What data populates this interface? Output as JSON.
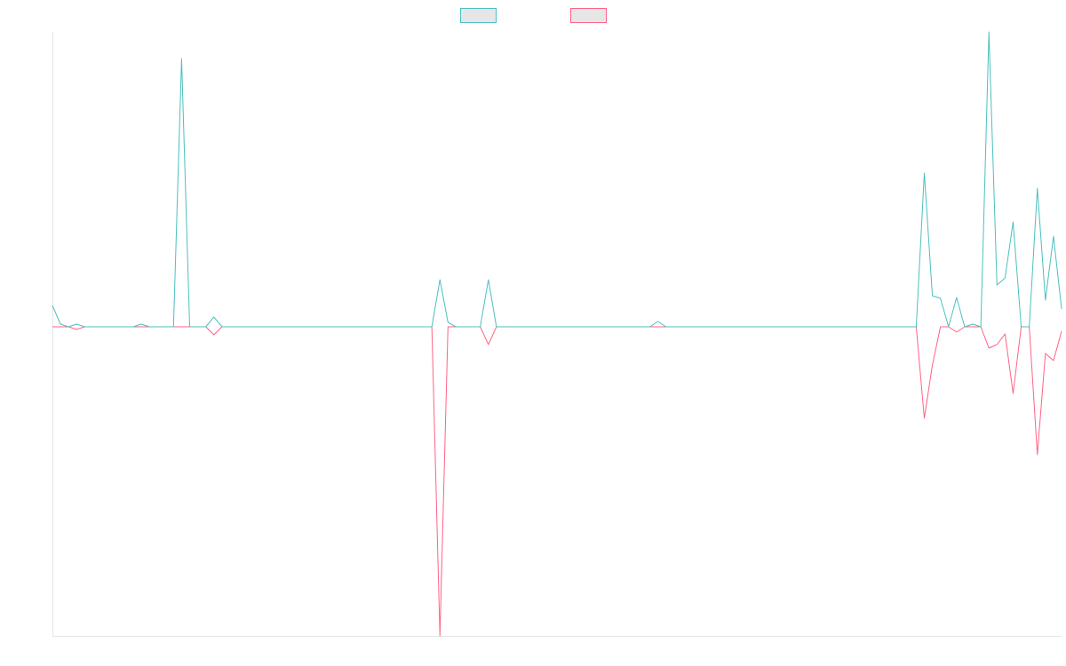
{
  "chart_data": {
    "type": "line",
    "ylim": [
      -348,
      332
    ],
    "grid": false,
    "series": [
      {
        "color": "#4bc0c0",
        "values": [
          24,
          3,
          0,
          3,
          0,
          0,
          0,
          0,
          0,
          0,
          0,
          3,
          0,
          0,
          0,
          0,
          302,
          0,
          0,
          0,
          11,
          0,
          0,
          0,
          0,
          0,
          0,
          0,
          0,
          0,
          0,
          0,
          0,
          0,
          0,
          0,
          0,
          0,
          0,
          0,
          0,
          0,
          0,
          0,
          0,
          0,
          0,
          0,
          53,
          5,
          0,
          0,
          0,
          0,
          53,
          0,
          0,
          0,
          0,
          0,
          0,
          0,
          0,
          0,
          0,
          0,
          0,
          0,
          0,
          0,
          0,
          0,
          0,
          0,
          0,
          6,
          0,
          0,
          0,
          0,
          0,
          0,
          0,
          0,
          0,
          0,
          0,
          0,
          0,
          0,
          0,
          0,
          0,
          0,
          0,
          0,
          0,
          0,
          0,
          0,
          0,
          0,
          0,
          0,
          0,
          0,
          0,
          0,
          173,
          35,
          32,
          0,
          33,
          0,
          3,
          0,
          332,
          47,
          55,
          118,
          0,
          0,
          156,
          30,
          102,
          20
        ]
      },
      {
        "color": "#ff6384",
        "values": [
          0,
          0,
          0,
          -3,
          0,
          0,
          0,
          0,
          0,
          0,
          0,
          0,
          0,
          0,
          0,
          0,
          0,
          0,
          0,
          0,
          -9,
          0,
          0,
          0,
          0,
          0,
          0,
          0,
          0,
          0,
          0,
          0,
          0,
          0,
          0,
          0,
          0,
          0,
          0,
          0,
          0,
          0,
          0,
          0,
          0,
          0,
          0,
          0,
          -348,
          0,
          0,
          0,
          0,
          0,
          -20,
          0,
          0,
          0,
          0,
          0,
          0,
          0,
          0,
          0,
          0,
          0,
          0,
          0,
          0,
          0,
          0,
          0,
          0,
          0,
          0,
          0,
          0,
          0,
          0,
          0,
          0,
          0,
          0,
          0,
          0,
          0,
          0,
          0,
          0,
          0,
          0,
          0,
          0,
          0,
          0,
          0,
          0,
          0,
          0,
          0,
          0,
          0,
          0,
          0,
          0,
          0,
          0,
          0,
          -103,
          -43,
          0,
          0,
          -6,
          0,
          0,
          0,
          -24,
          -20,
          -8,
          -75,
          0,
          0,
          -144,
          -30,
          -38,
          -5
        ]
      }
    ]
  }
}
